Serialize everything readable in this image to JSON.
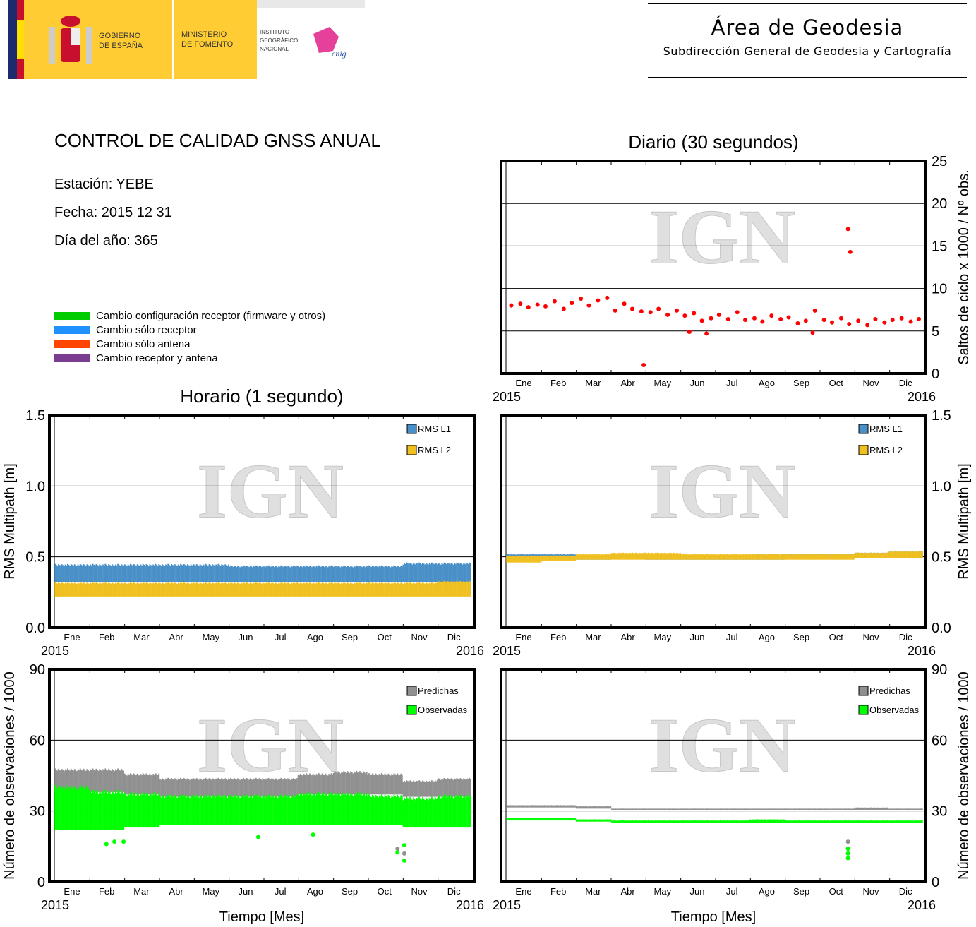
{
  "header": {
    "logo_text": [
      "GOBIERNO DE ESPAÑA",
      "MINISTERIO DE FOMENTO",
      "INSTITUTO GEOGRÁFICO NACIONAL",
      "cnig"
    ],
    "area": "Área de Geodesia",
    "subdireccion": "Subdirección General de Geodesia y Cartografía"
  },
  "report": {
    "title": "CONTROL DE CALIDAD GNSS ANUAL",
    "estacion": "Estación: YEBE",
    "fecha": "Fecha: 2015 12 31",
    "dia": "Día del año: 365"
  },
  "legend": [
    {
      "label": "Cambio configuración receptor (firmware y otros)",
      "color": "#00cc00"
    },
    {
      "label": "Cambio sólo receptor",
      "color": "#1e90ff"
    },
    {
      "label": "Cambio sólo antena",
      "color": "#ff4500"
    },
    {
      "label": "Cambio receptor y antena",
      "color": "#7b3b8e"
    }
  ],
  "titles": {
    "daily": "Diario (30 segundos)",
    "hourly": "Horario (1 segundo)",
    "xlabel": "Tiempo [Mes]"
  },
  "watermark": "IGN",
  "chart_data": [
    {
      "id": "cycle-slips-daily",
      "type": "scatter",
      "ylabel": "Saltos de ciclo x 1000 / Nº obs.",
      "ylim": [
        0,
        25
      ],
      "yticks": [
        "0",
        "5",
        "10",
        "15",
        "20",
        "25"
      ],
      "grid": [
        5,
        10,
        15,
        20
      ],
      "xticks": [
        "Ene",
        "Feb",
        "Mar",
        "Abr",
        "May",
        "Jun",
        "Jul",
        "Ago",
        "Sep",
        "Oct",
        "Nov",
        "Dic"
      ],
      "xstart": "2015",
      "xend": "2016",
      "axis_side": "right",
      "series": [
        {
          "color": "#ff0000",
          "x": [
            4,
            12,
            19,
            27,
            34,
            42,
            50,
            57,
            65,
            72,
            80,
            88,
            95,
            103,
            110,
            118,
            126,
            133,
            141,
            149,
            156,
            164,
            171,
            179,
            186,
            194,
            202,
            209,
            217,
            224,
            232,
            240,
            247,
            255,
            262,
            270,
            278,
            285,
            293,
            300,
            308,
            316,
            323,
            331,
            338,
            346,
            354,
            361,
            120,
            299,
            301,
            160,
            175,
            268
          ],
          "y": [
            8,
            8.2,
            7.8,
            8.1,
            7.9,
            8.5,
            7.6,
            8.3,
            8.8,
            8,
            8.6,
            8.9,
            7.4,
            8.2,
            7.6,
            7.3,
            7.2,
            7.6,
            6.9,
            7.4,
            6.8,
            7.1,
            6.2,
            6.5,
            6.9,
            6.4,
            7.2,
            6.3,
            6.5,
            6.1,
            6.8,
            6.4,
            6.6,
            5.9,
            6.2,
            7.4,
            6.3,
            6,
            6.5,
            5.8,
            6.2,
            5.7,
            6.4,
            6,
            6.3,
            6.5,
            6.1,
            6.4,
            1,
            17,
            14.3,
            4.9,
            4.7,
            4.8
          ]
        }
      ]
    },
    {
      "id": "multipath-hourly",
      "type": "area",
      "ylabel": "RMS Multipath [m]",
      "ylim": [
        0,
        1.5
      ],
      "yticks": [
        "0.0",
        "0.5",
        "1.0",
        "1.5"
      ],
      "grid": [
        0.5,
        1.0
      ],
      "xticks": [
        "Ene",
        "Feb",
        "Mar",
        "Abr",
        "May",
        "Jun",
        "Jul",
        "Ago",
        "Sep",
        "Oct",
        "Nov",
        "Dic"
      ],
      "xstart": "2015",
      "xend": "2016",
      "axis_side": "left",
      "series": [
        {
          "name": "RMS L1",
          "color": "#4a90c8",
          "low": [
            0.32,
            0.32,
            0.32,
            0.32,
            0.32,
            0.32,
            0.32,
            0.32,
            0.32,
            0.32,
            0.32,
            0.32
          ],
          "high": [
            0.45,
            0.45,
            0.45,
            0.45,
            0.45,
            0.44,
            0.44,
            0.44,
            0.44,
            0.44,
            0.46,
            0.46
          ]
        },
        {
          "name": "RMS L2",
          "color": "#f0c020",
          "low": [
            0.22,
            0.22,
            0.22,
            0.22,
            0.22,
            0.22,
            0.22,
            0.22,
            0.22,
            0.22,
            0.22,
            0.22
          ],
          "high": [
            0.32,
            0.32,
            0.32,
            0.32,
            0.32,
            0.32,
            0.32,
            0.32,
            0.32,
            0.32,
            0.32,
            0.33
          ]
        }
      ]
    },
    {
      "id": "multipath-daily",
      "type": "area",
      "ylabel": "RMS Multipath [m]",
      "ylim": [
        0,
        1.5
      ],
      "yticks": [
        "0.0",
        "0.5",
        "1.0",
        "1.5"
      ],
      "grid": [
        0.5,
        1.0
      ],
      "xticks": [
        "Ene",
        "Feb",
        "Mar",
        "Abr",
        "May",
        "Jun",
        "Jul",
        "Ago",
        "Sep",
        "Oct",
        "Nov",
        "Dic"
      ],
      "xstart": "2015",
      "xend": "2016",
      "axis_side": "right",
      "series": [
        {
          "name": "RMS L1",
          "color": "#4a90c8",
          "low": [
            0.48,
            0.48,
            0.48,
            0.49,
            0.48,
            0.48,
            0.48,
            0.48,
            0.49,
            0.49,
            0.5,
            0.5
          ],
          "high": [
            0.52,
            0.52,
            0.51,
            0.52,
            0.52,
            0.51,
            0.51,
            0.52,
            0.52,
            0.52,
            0.53,
            0.54
          ]
        },
        {
          "name": "RMS L2",
          "color": "#f0c020",
          "low": [
            0.46,
            0.47,
            0.48,
            0.48,
            0.48,
            0.48,
            0.48,
            0.48,
            0.48,
            0.48,
            0.49,
            0.49
          ],
          "high": [
            0.51,
            0.51,
            0.52,
            0.53,
            0.53,
            0.52,
            0.52,
            0.52,
            0.52,
            0.52,
            0.53,
            0.54
          ]
        }
      ]
    },
    {
      "id": "observations-hourly",
      "type": "area",
      "ylabel": "Número de observaciones / 1000",
      "ylim": [
        0,
        90
      ],
      "yticks": [
        "0",
        "30",
        "60",
        "90"
      ],
      "grid": [
        30,
        60
      ],
      "xticks": [
        "Ene",
        "Feb",
        "Mar",
        "Abr",
        "May",
        "Jun",
        "Jul",
        "Ago",
        "Sep",
        "Oct",
        "Nov",
        "Dic"
      ],
      "xstart": "2015",
      "xend": "2016",
      "axis_side": "left",
      "series": [
        {
          "name": "Predichas",
          "color": "#909090",
          "low": [
            38,
            38,
            37,
            36,
            36,
            36,
            36,
            37,
            37,
            37,
            36,
            36
          ],
          "high": [
            48,
            48,
            46,
            44,
            44,
            44,
            44,
            46,
            47,
            46,
            43,
            44
          ]
        },
        {
          "name": "Observadas",
          "color": "#00ff00",
          "low": [
            22,
            22,
            23,
            24,
            24,
            24,
            24,
            24,
            24,
            24,
            23,
            23
          ],
          "high": [
            41,
            39,
            38,
            37,
            37,
            37,
            37,
            38,
            38,
            37,
            36,
            37
          ]
        }
      ],
      "outliers": {
        "Predichas": [
          [
            300,
            14
          ],
          [
            306,
            12
          ]
        ],
        "Observadas": [
          [
            300,
            12.5
          ],
          [
            306,
            9
          ],
          [
            306,
            15.5
          ],
          [
            45,
            16
          ],
          [
            52,
            17
          ],
          [
            60,
            17
          ],
          [
            178,
            19
          ],
          [
            226,
            20
          ]
        ]
      }
    },
    {
      "id": "observations-daily",
      "type": "area",
      "ylabel": "Número de observaciones / 1000",
      "ylim": [
        0,
        90
      ],
      "yticks": [
        "0",
        "30",
        "60",
        "90"
      ],
      "grid": [
        30,
        60
      ],
      "xticks": [
        "Ene",
        "Feb",
        "Mar",
        "Abr",
        "May",
        "Jun",
        "Jul",
        "Ago",
        "Sep",
        "Oct",
        "Nov",
        "Dic"
      ],
      "xstart": "2015",
      "xend": "2016",
      "axis_side": "right",
      "series": [
        {
          "name": "Predichas",
          "color": "#909090",
          "low": [
            31.5,
            31.5,
            31,
            30.5,
            30.5,
            30.5,
            30.5,
            30.5,
            30.5,
            30.5,
            30.5,
            30.5
          ],
          "high": [
            32.5,
            32.5,
            32,
            31,
            31,
            31,
            31,
            31,
            31,
            31,
            31.5,
            31
          ]
        },
        {
          "name": "Observadas",
          "color": "#00ff00",
          "low": [
            26,
            26,
            25.5,
            25,
            25,
            25,
            25,
            25,
            25,
            25,
            25,
            25
          ],
          "high": [
            27,
            27,
            26.5,
            26,
            26,
            26,
            26,
            26.5,
            26,
            26,
            26,
            26
          ]
        }
      ],
      "outliers": {
        "Predichas": [
          [
            299,
            17
          ],
          [
            299,
            14
          ],
          [
            299,
            12
          ]
        ],
        "Observadas": [
          [
            299,
            12
          ],
          [
            299,
            10
          ],
          [
            299,
            14
          ]
        ]
      }
    }
  ]
}
